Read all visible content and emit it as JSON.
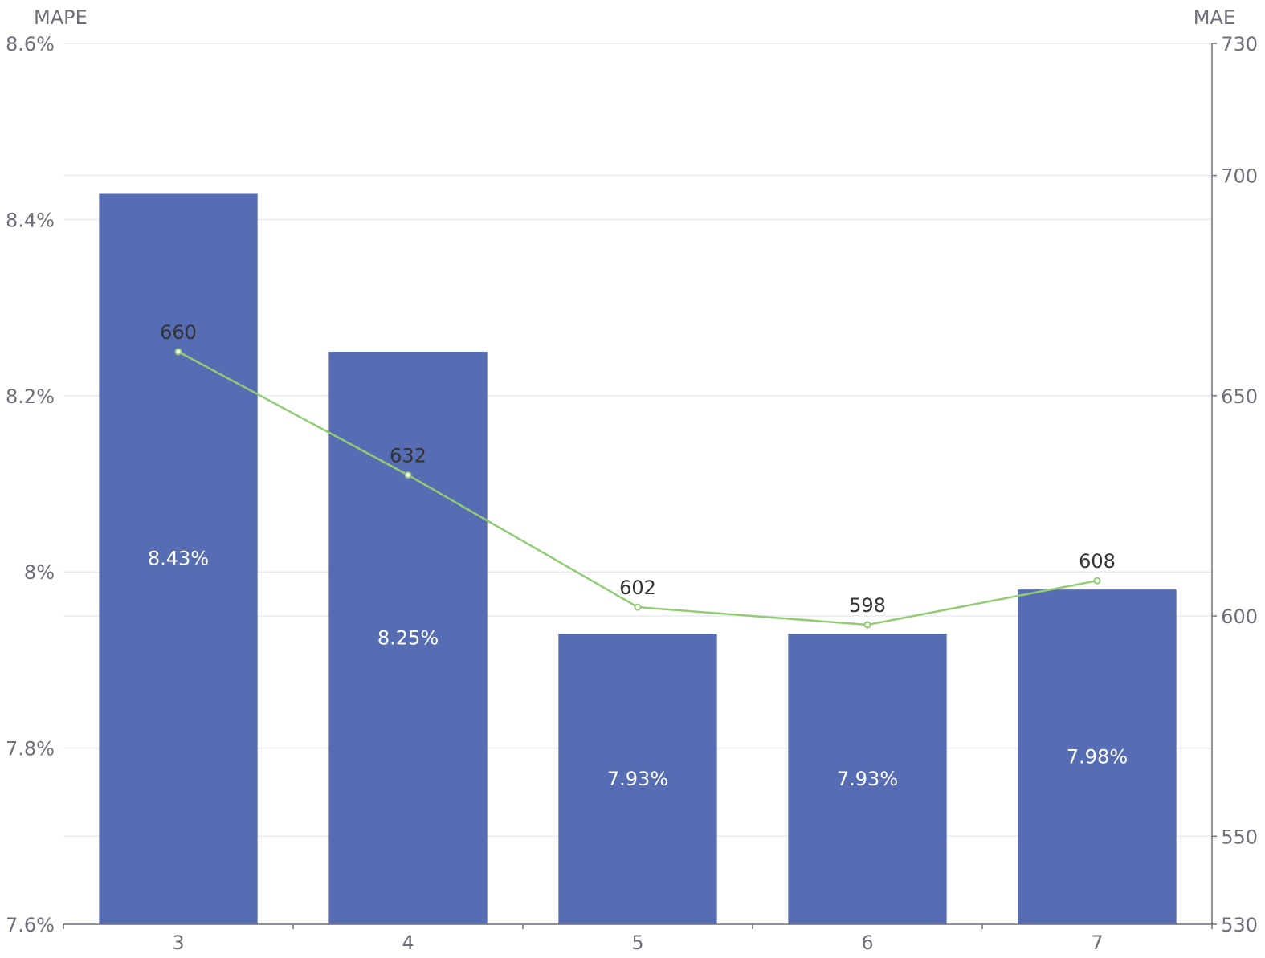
{
  "chart_data": {
    "type": "bar",
    "title": "",
    "categories": [
      "3",
      "4",
      "5",
      "6",
      "7"
    ],
    "left_axis": {
      "label": "MAPE",
      "ticks": [
        "7.6%",
        "7.8%",
        "8%",
        "8.2%",
        "8.4%",
        "8.6%"
      ],
      "ylim": [
        7.6,
        8.6
      ]
    },
    "right_axis": {
      "label": "MAE",
      "ticks": [
        "530",
        "550",
        "600",
        "650",
        "700",
        "730"
      ],
      "ylim": [
        530,
        730
      ]
    },
    "series": [
      {
        "type": "bar",
        "axis": "left",
        "values": [
          8.43,
          8.25,
          7.93,
          7.93,
          7.98
        ],
        "labels": [
          "8.43%",
          "8.25%",
          "7.93%",
          "7.93%",
          "7.98%"
        ],
        "color": "#566db3"
      },
      {
        "type": "line",
        "axis": "right",
        "values": [
          660,
          632,
          602,
          598,
          608
        ],
        "labels": [
          "660",
          "632",
          "602",
          "598",
          "608"
        ],
        "color": "#91cc75"
      }
    ],
    "grid": true,
    "legend": "none"
  }
}
